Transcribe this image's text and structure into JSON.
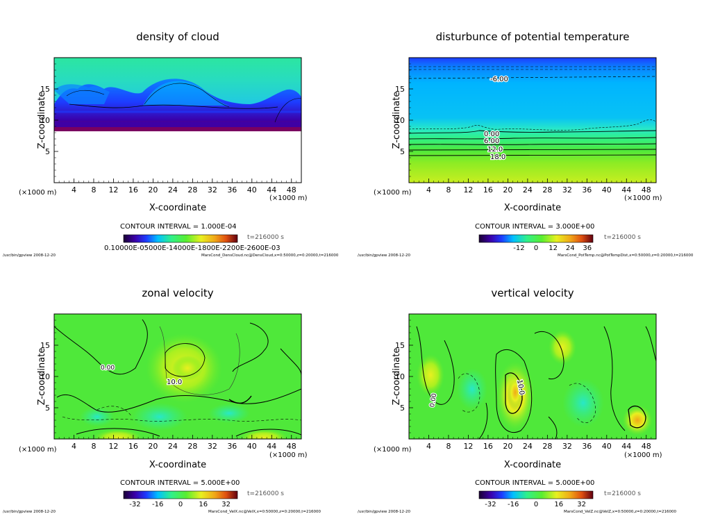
{
  "chart_data": [
    {
      "type": "heatmap",
      "title": "density of cloud",
      "xlabel": "X-coordinate",
      "ylabel": "Z-coordinate",
      "x_unit": "(×1000 m)",
      "y_unit": "(×1000 m)",
      "xlim": [
        0,
        50
      ],
      "ylim": [
        0,
        20
      ],
      "x_ticks": [
        "4",
        "8",
        "12",
        "16",
        "20",
        "24",
        "28",
        "32",
        "36",
        "40",
        "44",
        "48"
      ],
      "y_ticks": [
        "5",
        "10",
        "15"
      ],
      "contour_labels": [],
      "contour_interval": "CONTOUR INTERVAL = 1.000E-04",
      "time": "t=216000 s",
      "colorbar_ticks": [
        "0.10000E-05",
        "0.14000E-04",
        "0.18000E-04",
        "0.22000E-04",
        "0.26000E-03"
      ],
      "colorbar_label_text": "0.10000E-05000E-14000E-1800E-2200E-2600E-03",
      "footer_left": "/usr/bin/gpview   2008-12-20",
      "footer_right": "MarsCond_DensCloud.nc@DensCloud,x=0:50000,z=0:20000,t=216000"
    },
    {
      "type": "heatmap",
      "title": "disturbunce of potential temperature",
      "xlabel": "X-coordinate",
      "ylabel": "Z-coordinate",
      "x_unit": "(×1000 m)",
      "y_unit": "(×1000 m)",
      "xlim": [
        0,
        50
      ],
      "ylim": [
        0,
        20
      ],
      "x_ticks": [
        "4",
        "8",
        "12",
        "16",
        "20",
        "24",
        "28",
        "32",
        "36",
        "40",
        "44",
        "48"
      ],
      "y_ticks": [
        "5",
        "10",
        "15"
      ],
      "contour_labels": [
        "-6.00",
        "0.00",
        "6.00",
        "12.0",
        "18.0"
      ],
      "contour_interval": "CONTOUR INTERVAL = 3.000E+00",
      "time": "t=216000 s",
      "colorbar_ticks": [
        "-12",
        "0",
        "12",
        "24",
        "36"
      ],
      "footer_left": "/usr/bin/gpview   2008-12-20",
      "footer_right": "MarsCond_PotTemp.nc@PotTempDist,x=0:50000,z=0:20000,t=216000"
    },
    {
      "type": "heatmap",
      "title": "zonal velocity",
      "xlabel": "X-coordinate",
      "ylabel": "Z-coordinate",
      "x_unit": "(×1000 m)",
      "y_unit": "(×1000 m)",
      "xlim": [
        0,
        50
      ],
      "ylim": [
        0,
        20
      ],
      "x_ticks": [
        "4",
        "8",
        "12",
        "16",
        "20",
        "24",
        "28",
        "32",
        "36",
        "40",
        "44",
        "48"
      ],
      "y_ticks": [
        "5",
        "10",
        "15"
      ],
      "contour_labels": [
        "0.00",
        "10.0"
      ],
      "contour_interval": "CONTOUR INTERVAL = 5.000E+00",
      "time": "t=216000 s",
      "colorbar_ticks": [
        "-32",
        "-16",
        "0",
        "16",
        "32"
      ],
      "footer_left": "/usr/bin/gpview   2008-12-20",
      "footer_right": "MarsCond_VelX.nc@VelX,x=0:50000,z=0:20000,t=216000"
    },
    {
      "type": "heatmap",
      "title": "vertical velocity",
      "xlabel": "X-coordinate",
      "ylabel": "Z-coordinate",
      "x_unit": "(×1000 m)",
      "y_unit": "(×1000 m)",
      "xlim": [
        0,
        50
      ],
      "ylim": [
        0,
        20
      ],
      "x_ticks": [
        "4",
        "8",
        "12",
        "16",
        "20",
        "24",
        "28",
        "32",
        "36",
        "40",
        "44",
        "48"
      ],
      "y_ticks": [
        "5",
        "10",
        "15"
      ],
      "contour_labels": [
        "0.00",
        "10.0"
      ],
      "contour_interval": "CONTOUR INTERVAL = 5.000E+00",
      "time": "t=216000 s",
      "colorbar_ticks": [
        "-32",
        "-16",
        "0",
        "16",
        "32"
      ],
      "footer_left": "/usr/bin/gpview   2008-12-20",
      "footer_right": "MarsCond_VelZ.nc@VelZ,x=0:50000,z=0:20000,t=216000"
    }
  ],
  "palette": [
    "#1a0033",
    "#3b00a8",
    "#1d3cff",
    "#0a84ff",
    "#00c0ff",
    "#28e8c8",
    "#30f08a",
    "#58ee30",
    "#aaf020",
    "#e8f020",
    "#f0a818",
    "#e05010",
    "#a81010",
    "#600010"
  ]
}
